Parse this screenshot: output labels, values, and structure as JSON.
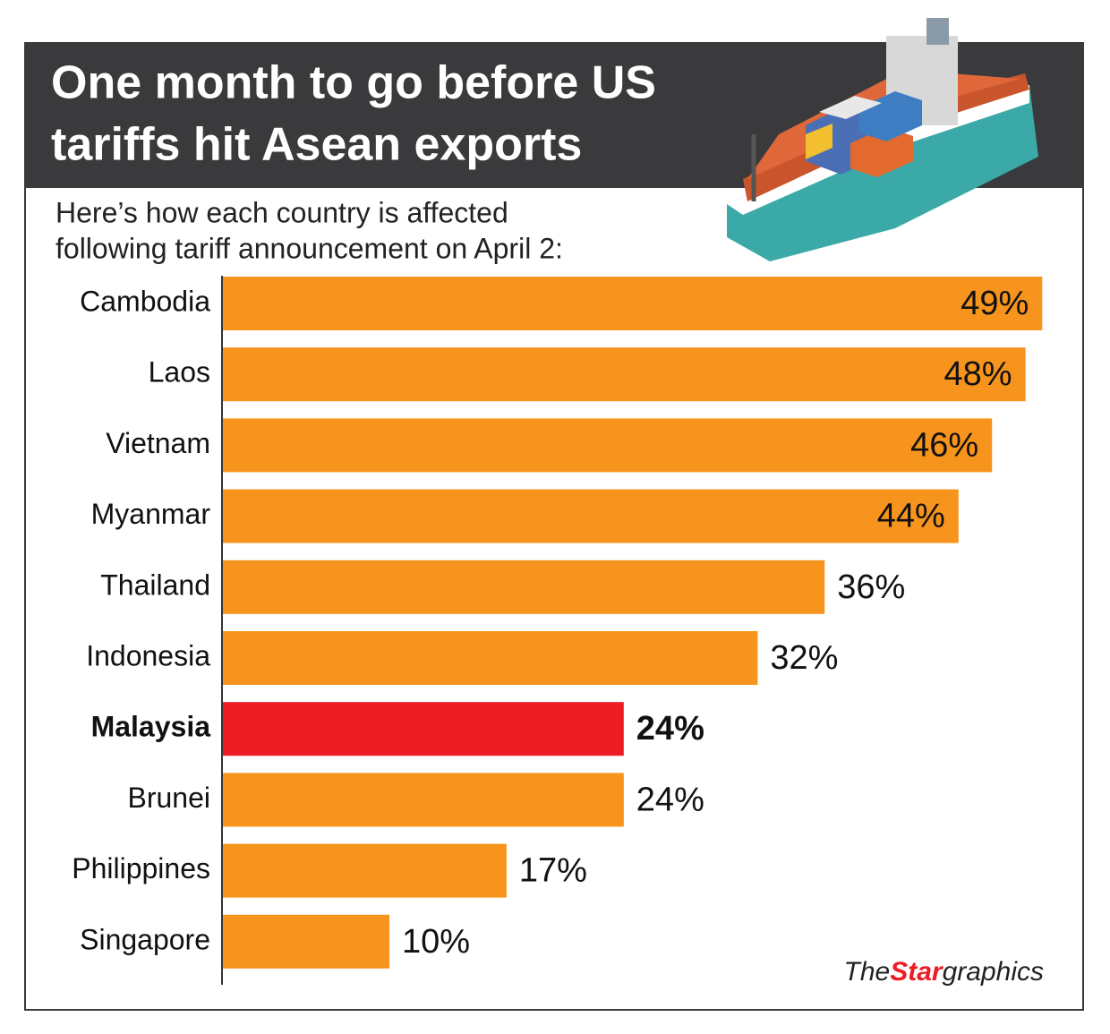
{
  "chart_data": {
    "type": "bar",
    "orientation": "horizontal",
    "title": [
      "One month to go before US",
      "tariffs hit Asean exports"
    ],
    "subtitle": [
      "Here’s how each country is affected",
      "following tariff announcement on April 2:"
    ],
    "categories": [
      "Cambodia",
      "Laos",
      "Vietnam",
      "Myanmar",
      "Thailand",
      "Indonesia",
      "Malaysia",
      "Brunei",
      "Philippines",
      "Singapore"
    ],
    "values": [
      49,
      48,
      46,
      44,
      36,
      32,
      24,
      24,
      17,
      10
    ],
    "value_labels": [
      "49%",
      "48%",
      "46%",
      "44%",
      "36%",
      "32%",
      "24%",
      "24%",
      "17%",
      "10%"
    ],
    "color": "#f7941d",
    "highlight": {
      "index": 6,
      "color": "#ed1c24"
    },
    "xlim": [
      0,
      50
    ],
    "credit": [
      "The",
      "Star",
      "graphics"
    ]
  }
}
